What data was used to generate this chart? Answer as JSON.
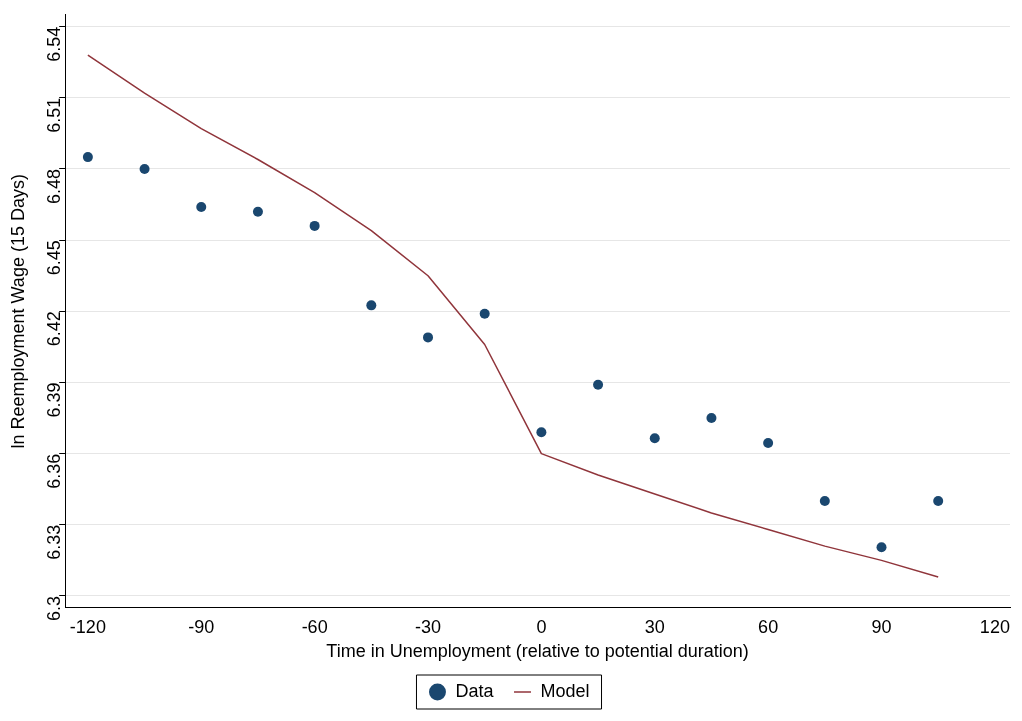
{
  "chart_data": {
    "type": "scatter",
    "xlabel": "Time in Unemployment (relative to potential duration)",
    "ylabel": "ln Reemployment Wage (15 Days)",
    "xlim": [
      -126,
      124
    ],
    "xticks": [
      -120,
      -90,
      -60,
      -30,
      0,
      30,
      60,
      90,
      120
    ],
    "ylim": [
      6.295,
      6.545
    ],
    "yticks": [
      6.3,
      6.33,
      6.36,
      6.39,
      6.42,
      6.45,
      6.48,
      6.51,
      6.54
    ],
    "grid": "y",
    "legend": "bottom",
    "marker": "circle",
    "series": [
      {
        "name": "Data",
        "color": "#1a476f",
        "x": [
          -120,
          -105,
          -90,
          -75,
          -60,
          -45,
          -30,
          -15,
          0,
          15,
          30,
          45,
          60,
          75,
          90,
          105
        ],
        "values": [
          6.485,
          6.48,
          6.464,
          6.462,
          6.456,
          6.4225,
          6.409,
          6.419,
          6.369,
          6.389,
          6.3665,
          6.375,
          6.3645,
          6.34,
          6.3205,
          6.34
        ]
      },
      {
        "name": "Model",
        "type": "line",
        "marker": "none",
        "color": "#90353b",
        "x": [
          -120,
          -105,
          -90,
          -75,
          -60,
          -45,
          -30,
          -15,
          0,
          15,
          30,
          45,
          60,
          75,
          90,
          105
        ],
        "values": [
          6.528,
          6.512,
          6.497,
          6.484,
          6.47,
          6.454,
          6.435,
          6.406,
          6.36,
          6.351,
          6.343,
          6.335,
          6.328,
          6.321,
          6.315,
          6.308
        ]
      }
    ]
  }
}
